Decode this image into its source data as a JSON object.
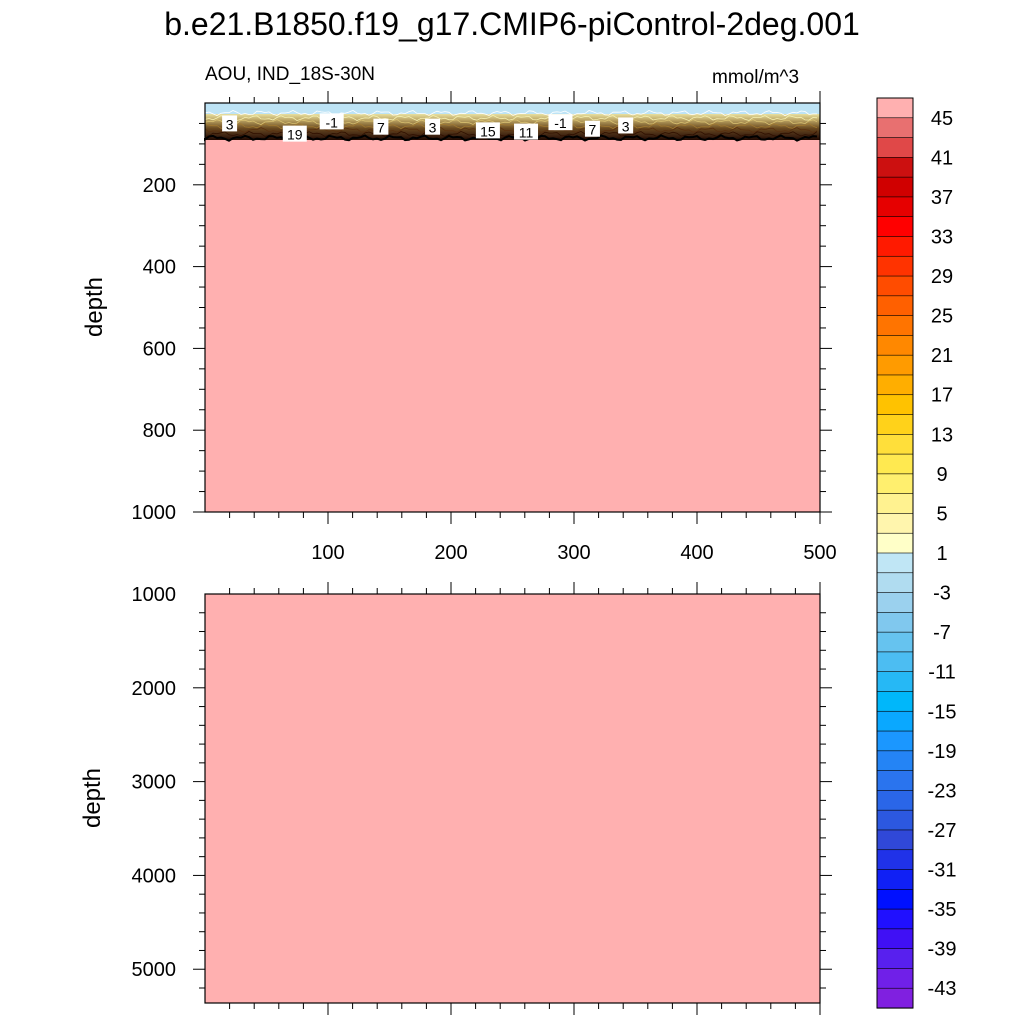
{
  "title": "b.e21.B1850.f19_g17.CMIP6-piControl-2deg.001",
  "chart_data": {
    "type": "heatmap",
    "variable_label": "AOU, IND_18S-30N",
    "units": "mmol/m^3",
    "panels": [
      {
        "id": "upper",
        "ylabel": "depth",
        "ylim": [
          0,
          1000
        ],
        "y_inverted": true,
        "yticks": [
          200,
          400,
          600,
          800,
          1000
        ],
        "xlim": [
          0,
          500
        ],
        "xticks": [
          100,
          200,
          300,
          400,
          500
        ],
        "surface_layer": {
          "fill_color": "#bde3f5",
          "thin_band_depth_range": [
            0,
            35
          ]
        },
        "thermocline_band_depth_range": [
          35,
          90
        ],
        "below_band_fill_color": "#ffb0b0",
        "contour_labels": [
          {
            "text": "3",
            "x": 20,
            "depth": 45
          },
          {
            "text": "19",
            "x": 73,
            "depth": 70
          },
          {
            "text": "-1",
            "x": 103,
            "depth": 40
          },
          {
            "text": "7",
            "x": 143,
            "depth": 53
          },
          {
            "text": "3",
            "x": 185,
            "depth": 53
          },
          {
            "text": "15",
            "x": 230,
            "depth": 62
          },
          {
            "text": "11",
            "x": 261,
            "depth": 65
          },
          {
            "text": "-1",
            "x": 289,
            "depth": 42
          },
          {
            "text": "7",
            "x": 315,
            "depth": 58
          },
          {
            "text": "3",
            "x": 342,
            "depth": 50
          }
        ]
      },
      {
        "id": "lower",
        "ylabel": "depth",
        "ylim": [
          1000,
          5360
        ],
        "y_inverted": true,
        "yticks": [
          1000,
          2000,
          3000,
          4000,
          5000
        ],
        "xlim": [
          0,
          500
        ],
        "fill_color": "#ffb0b0"
      }
    ],
    "colorbar": {
      "orientation": "vertical",
      "position": "right",
      "labels": [
        "45",
        "41",
        "37",
        "33",
        "29",
        "25",
        "21",
        "17",
        "13",
        "9",
        "5",
        "1",
        "-3",
        "-7",
        "-11",
        "-15",
        "-19",
        "-23",
        "-27",
        "-31",
        "-35",
        "-39",
        "-43"
      ],
      "colors": [
        "#ffb0b0",
        "#e87070",
        "#e04848",
        "#cc1010",
        "#d00000",
        "#e60000",
        "#ff0000",
        "#ff1a00",
        "#ff3300",
        "#ff4c00",
        "#ff6000",
        "#ff7400",
        "#ff8800",
        "#ff9b00",
        "#ffae00",
        "#ffc200",
        "#ffd21a",
        "#ffdf3a",
        "#ffe950",
        "#ffef6e",
        "#fff290",
        "#fff5ad",
        "#ffffc8",
        "#c0e6f5",
        "#b0dcf0",
        "#9bd1ee",
        "#80c8ee",
        "#66c3ef",
        "#4cbdf2",
        "#26b8f5",
        "#00b7fa",
        "#0aa8ff",
        "#1b97ff",
        "#2484f5",
        "#2a74ee",
        "#2a66e8",
        "#2c58e0",
        "#3048d8",
        "#2032e8",
        "#1020f5",
        "#0010ff",
        "#2010ff",
        "#4010f5",
        "#5820ee",
        "#7020e8",
        "#8020e0"
      ]
    }
  }
}
